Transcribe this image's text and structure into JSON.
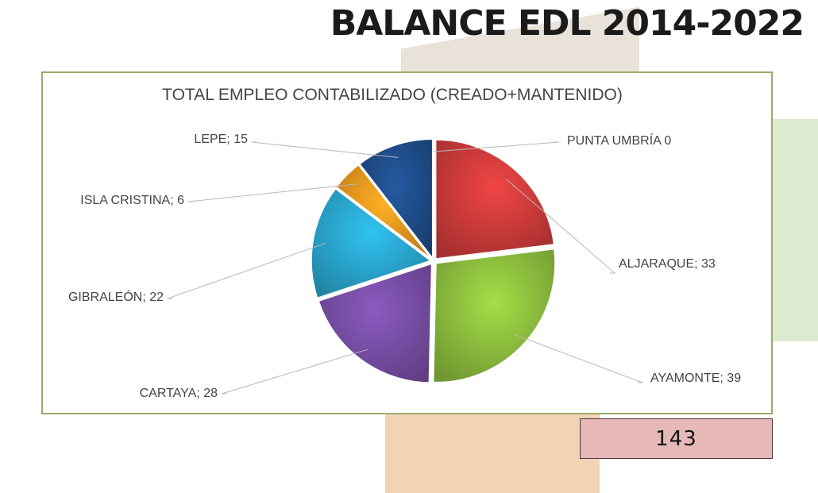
{
  "header": {
    "title": "BALANCE EDL 2014-2022"
  },
  "total": {
    "value": "143"
  },
  "chart_data": {
    "type": "pie",
    "title": "TOTAL EMPLEO CONTABILIZADO (CREADO+MANTENIDO)",
    "slices": [
      {
        "name": "PUNTA UMBRÍA",
        "value": 0,
        "label": "PUNTA UMBRÍA  0",
        "color": "#c0504d"
      },
      {
        "name": "ALJARAQUE",
        "value": 33,
        "label": "ALJARAQUE; 33",
        "color": "#d23c3c"
      },
      {
        "name": "AYAMONTE",
        "value": 39,
        "label": "AYAMONTE; 39",
        "color": "#8fc23f"
      },
      {
        "name": "CARTAYA",
        "value": 28,
        "label": "CARTAYA; 28",
        "color": "#7a4fa8"
      },
      {
        "name": "GIBRALEÓN",
        "value": 22,
        "label": "GIBRALEÓN; 22",
        "color": "#2aa9d2"
      },
      {
        "name": "ISLA CRISTINA",
        "value": 6,
        "label": "ISLA CRISTINA; 6",
        "color": "#f59a1f"
      },
      {
        "name": "LEPE",
        "value": 15,
        "label": "LEPE; 15",
        "color": "#1f4e8c"
      }
    ],
    "legend": "none"
  }
}
